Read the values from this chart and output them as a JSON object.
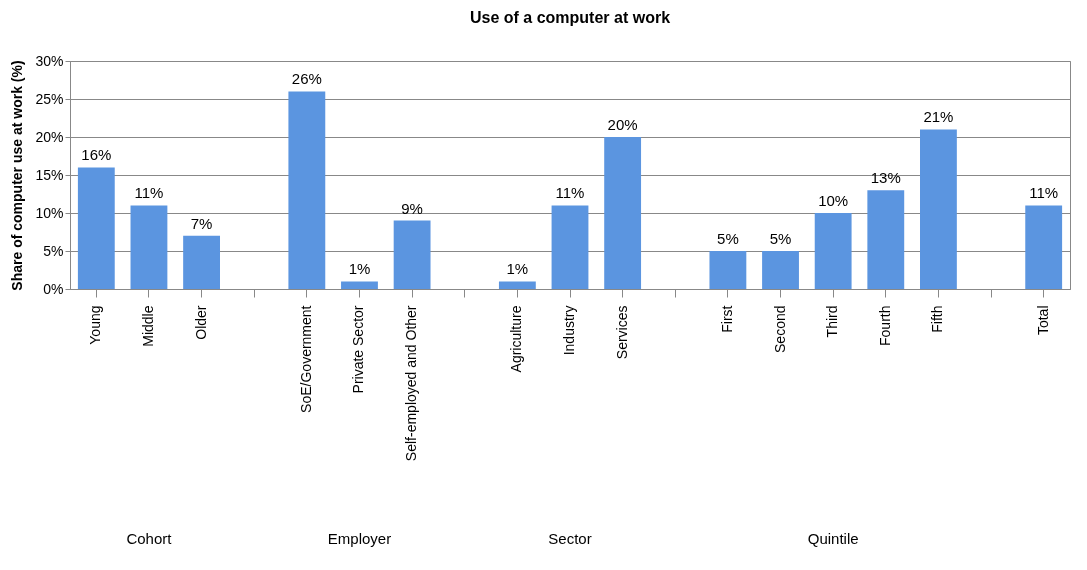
{
  "chart_data": {
    "type": "bar",
    "title": "Use of a computer at work",
    "ylabel": "Share of computer use at work (%)",
    "categories": [
      "Young",
      "Middle",
      "Older",
      null,
      "SoE/Government",
      "Private Sector",
      "Self-employed and Other",
      null,
      "Agriculture",
      "Industry",
      "Services",
      null,
      "First",
      "Second",
      "Third",
      "Fourth",
      "Fifth",
      null,
      "Total"
    ],
    "values": [
      16,
      11,
      7,
      null,
      26,
      1,
      9,
      null,
      1,
      11,
      20,
      null,
      5,
      5,
      10,
      13,
      21,
      null,
      11
    ],
    "value_labels": [
      "16%",
      "11%",
      "7%",
      null,
      "26%",
      "1%",
      "9%",
      null,
      "1%",
      "11%",
      "20%",
      null,
      "5%",
      "5%",
      "10%",
      "13%",
      "21%",
      null,
      "11%"
    ],
    "color": "#5b95e0",
    "ylim": [
      0,
      30
    ],
    "yticks": [
      {
        "value": 0,
        "label": "0%"
      },
      {
        "value": 5,
        "label": "5%"
      },
      {
        "value": 10,
        "label": "10%"
      },
      {
        "value": 15,
        "label": "15%"
      },
      {
        "value": 20,
        "label": "20%"
      },
      {
        "value": 25,
        "label": "25%"
      },
      {
        "value": 30,
        "label": "30%"
      }
    ],
    "grid": "y",
    "annotations": [
      "Cohort",
      "Employer",
      "Sector",
      "Quintile"
    ]
  }
}
